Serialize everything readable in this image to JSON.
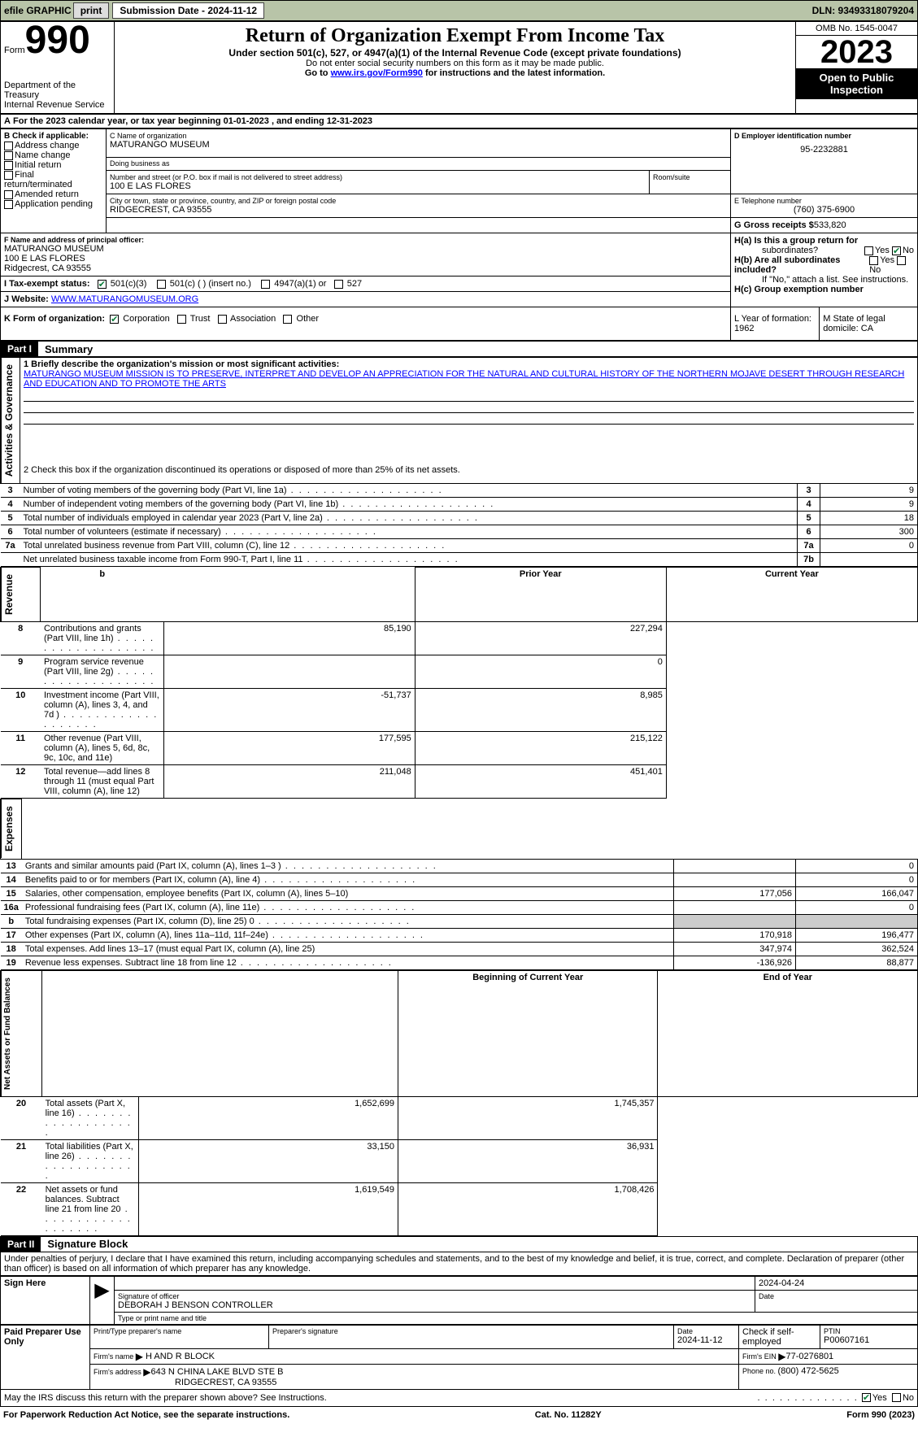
{
  "topbar": {
    "efile": "efile GRAPHIC",
    "print": "print",
    "sub_label": "Submission Date - 2024-11-12",
    "dln": "DLN: 93493318079204"
  },
  "header": {
    "form_prefix": "Form",
    "form_num": "990",
    "dept": "Department of the Treasury",
    "irs": "Internal Revenue Service",
    "title": "Return of Organization Exempt From Income Tax",
    "sub1": "Under section 501(c), 527, or 4947(a)(1) of the Internal Revenue Code (except private foundations)",
    "sub2": "Do not enter social security numbers on this form as it may be made public.",
    "sub3_pre": "Go to ",
    "sub3_link": "www.irs.gov/Form990",
    "sub3_post": " for instructions and the latest information.",
    "omb": "OMB No. 1545-0047",
    "year": "2023",
    "inspect": "Open to Public Inspection"
  },
  "period": {
    "a": "A",
    "text": "For the 2023 calendar year, or tax year beginning 01-01-2023    , and ending 12-31-2023"
  },
  "B": {
    "label": "B Check if applicable:",
    "items": [
      "Address change",
      "Name change",
      "Initial return",
      "Final return/terminated",
      "Amended return",
      "Application pending"
    ]
  },
  "C": {
    "name_label": "C Name of organization",
    "name": "MATURANGO MUSEUM",
    "dba_label": "Doing business as",
    "dba": "",
    "street_label": "Number and street (or P.O. box if mail is not delivered to street address)",
    "street": "100 E LAS FLORES",
    "room_label": "Room/suite",
    "city_label": "City or town, state or province, country, and ZIP or foreign postal code",
    "city": "RIDGECREST, CA  93555"
  },
  "D": {
    "label": "D Employer identification number",
    "value": "95-2232881"
  },
  "E": {
    "label": "E Telephone number",
    "value": "(760) 375-6900"
  },
  "G": {
    "label": "G Gross receipts $",
    "value": "533,820"
  },
  "F": {
    "label": "F  Name and address of principal officer:",
    "name": "MATURANGO MUSEUM",
    "street": "100 E LAS FLORES",
    "city": "Ridgecrest, CA  93555"
  },
  "H": {
    "a_label": "H(a)  Is this a group return for",
    "a_sub": "subordinates?",
    "b_label": "H(b)  Are all subordinates included?",
    "b_note": "If \"No,\" attach a list. See instructions.",
    "c_label": "H(c)  Group exemption number  ",
    "yes": "Yes",
    "no": "No"
  },
  "I": {
    "label": "I    Tax-exempt status:",
    "opts": [
      "501(c)(3)",
      "501(c) (  ) (insert no.)",
      "4947(a)(1) or",
      "527"
    ]
  },
  "J": {
    "label": "J   Website: ",
    "value": "WWW.MATURANGOMUSEUM.ORG"
  },
  "K": {
    "label": "K Form of organization:",
    "opts": [
      "Corporation",
      "Trust",
      "Association",
      "Other"
    ]
  },
  "L": {
    "label": "L Year of formation: 1962"
  },
  "M": {
    "label": "M State of legal domicile: CA"
  },
  "part1": {
    "header": "Part I",
    "title": "Summary",
    "line1_label": "1  Briefly describe the organization's mission or most significant activities:",
    "mission": "MATURANGO MUSEUM MISSION IS TO PRESERVE, INTERPRET AND DEVELOP AN APPRECIATION FOR THE NATURAL AND CULTURAL HISTORY OF THE NORTHERN MOJAVE DESERT THROUGH RESEARCH AND EDUCATION AND TO PROMOTE THE ARTS",
    "line2": "2   Check this box       if the organization discontinued its operations or disposed of more than 25% of its net assets.",
    "sections": {
      "gov": "Activities & Governance",
      "rev": "Revenue",
      "exp": "Expenses",
      "net": "Net Assets or Fund Balances"
    },
    "rows_gov": [
      {
        "n": "3",
        "t": "Number of voting members of the governing body (Part VI, line 1a)",
        "k": "3",
        "v": "9"
      },
      {
        "n": "4",
        "t": "Number of independent voting members of the governing body (Part VI, line 1b)",
        "k": "4",
        "v": "9"
      },
      {
        "n": "5",
        "t": "Total number of individuals employed in calendar year 2023 (Part V, line 2a)",
        "k": "5",
        "v": "18"
      },
      {
        "n": "6",
        "t": "Total number of volunteers (estimate if necessary)",
        "k": "6",
        "v": "300"
      },
      {
        "n": "7a",
        "t": "Total unrelated business revenue from Part VIII, column (C), line 12",
        "k": "7a",
        "v": "0"
      },
      {
        "n": "",
        "t": "Net unrelated business taxable income from Form 990-T, Part I, line 11",
        "k": "7b",
        "v": ""
      }
    ],
    "col_prior": "Prior Year",
    "col_curr": "Current Year",
    "col_beg": "Beginning of Current Year",
    "col_end": "End of Year",
    "rows_rev": [
      {
        "n": "8",
        "t": "Contributions and grants (Part VIII, line 1h)",
        "p": "85,190",
        "c": "227,294"
      },
      {
        "n": "9",
        "t": "Program service revenue (Part VIII, line 2g)",
        "p": "",
        "c": "0"
      },
      {
        "n": "10",
        "t": "Investment income (Part VIII, column (A), lines 3, 4, and 7d )",
        "p": "-51,737",
        "c": "8,985"
      },
      {
        "n": "11",
        "t": "Other revenue (Part VIII, column (A), lines 5, 6d, 8c, 9c, 10c, and 11e)",
        "p": "177,595",
        "c": "215,122"
      },
      {
        "n": "12",
        "t": "Total revenue—add lines 8 through 11 (must equal Part VIII, column (A), line 12)",
        "p": "211,048",
        "c": "451,401"
      }
    ],
    "rows_exp": [
      {
        "n": "13",
        "t": "Grants and similar amounts paid (Part IX, column (A), lines 1–3 )",
        "p": "",
        "c": "0"
      },
      {
        "n": "14",
        "t": "Benefits paid to or for members (Part IX, column (A), line 4)",
        "p": "",
        "c": "0"
      },
      {
        "n": "15",
        "t": "Salaries, other compensation, employee benefits (Part IX, column (A), lines 5–10)",
        "p": "177,056",
        "c": "166,047"
      },
      {
        "n": "16a",
        "t": "Professional fundraising fees (Part IX, column (A), line 11e)",
        "p": "",
        "c": "0"
      },
      {
        "n": "b",
        "t": "Total fundraising expenses (Part IX, column (D), line 25) 0",
        "p": "SHADE",
        "c": "SHADE"
      },
      {
        "n": "17",
        "t": "Other expenses (Part IX, column (A), lines 11a–11d, 11f–24e)",
        "p": "170,918",
        "c": "196,477"
      },
      {
        "n": "18",
        "t": "Total expenses. Add lines 13–17 (must equal Part IX, column (A), line 25)",
        "p": "347,974",
        "c": "362,524"
      },
      {
        "n": "19",
        "t": "Revenue less expenses. Subtract line 18 from line 12",
        "p": "-136,926",
        "c": "88,877"
      }
    ],
    "rows_net": [
      {
        "n": "20",
        "t": "Total assets (Part X, line 16)",
        "p": "1,652,699",
        "c": "1,745,357"
      },
      {
        "n": "21",
        "t": "Total liabilities (Part X, line 26)",
        "p": "33,150",
        "c": "36,931"
      },
      {
        "n": "22",
        "t": "Net assets or fund balances. Subtract line 21 from line 20",
        "p": "1,619,549",
        "c": "1,708,426"
      }
    ]
  },
  "part2": {
    "header": "Part II",
    "title": "Signature Block",
    "decl": "Under penalties of perjury, I declare that I have examined this return, including accompanying schedules and statements, and to the best of my knowledge and belief, it is true, correct, and complete. Declaration of preparer (other than officer) is based on all information of which preparer has any knowledge.",
    "sign_here": "Sign Here",
    "sig_officer": "Signature of officer",
    "sig_name": "DEBORAH J BENSON  CONTROLLER",
    "sig_type": "Type or print name and title",
    "sig_date_label": "Date",
    "sig_date": "2024-04-24",
    "paid": "Paid Preparer Use Only",
    "prep_name_label": "Print/Type preparer's name",
    "prep_sig_label": "Preparer's signature",
    "prep_date_label": "Date",
    "prep_date": "2024-11-12",
    "prep_check": "Check        if self-employed",
    "ptin_label": "PTIN",
    "ptin": "P00607161",
    "firm_name_label": "Firm's name   ",
    "firm_name": "H AND R BLOCK",
    "firm_ein_label": "Firm's EIN  ",
    "firm_ein": "77-0276801",
    "firm_addr_label": "Firm's address ",
    "firm_addr1": "643 N CHINA LAKE BLVD STE B",
    "firm_addr2": "RIDGECREST, CA  93555",
    "phone_label": "Phone no. ",
    "phone": "(800) 472-5625",
    "discuss": "May the IRS discuss this return with the preparer shown above? See Instructions.",
    "yes": "Yes",
    "no": "No"
  },
  "footer": {
    "left": "For Paperwork Reduction Act Notice, see the separate instructions.",
    "mid": "Cat. No. 11282Y",
    "right": "Form 990 (2023)"
  }
}
